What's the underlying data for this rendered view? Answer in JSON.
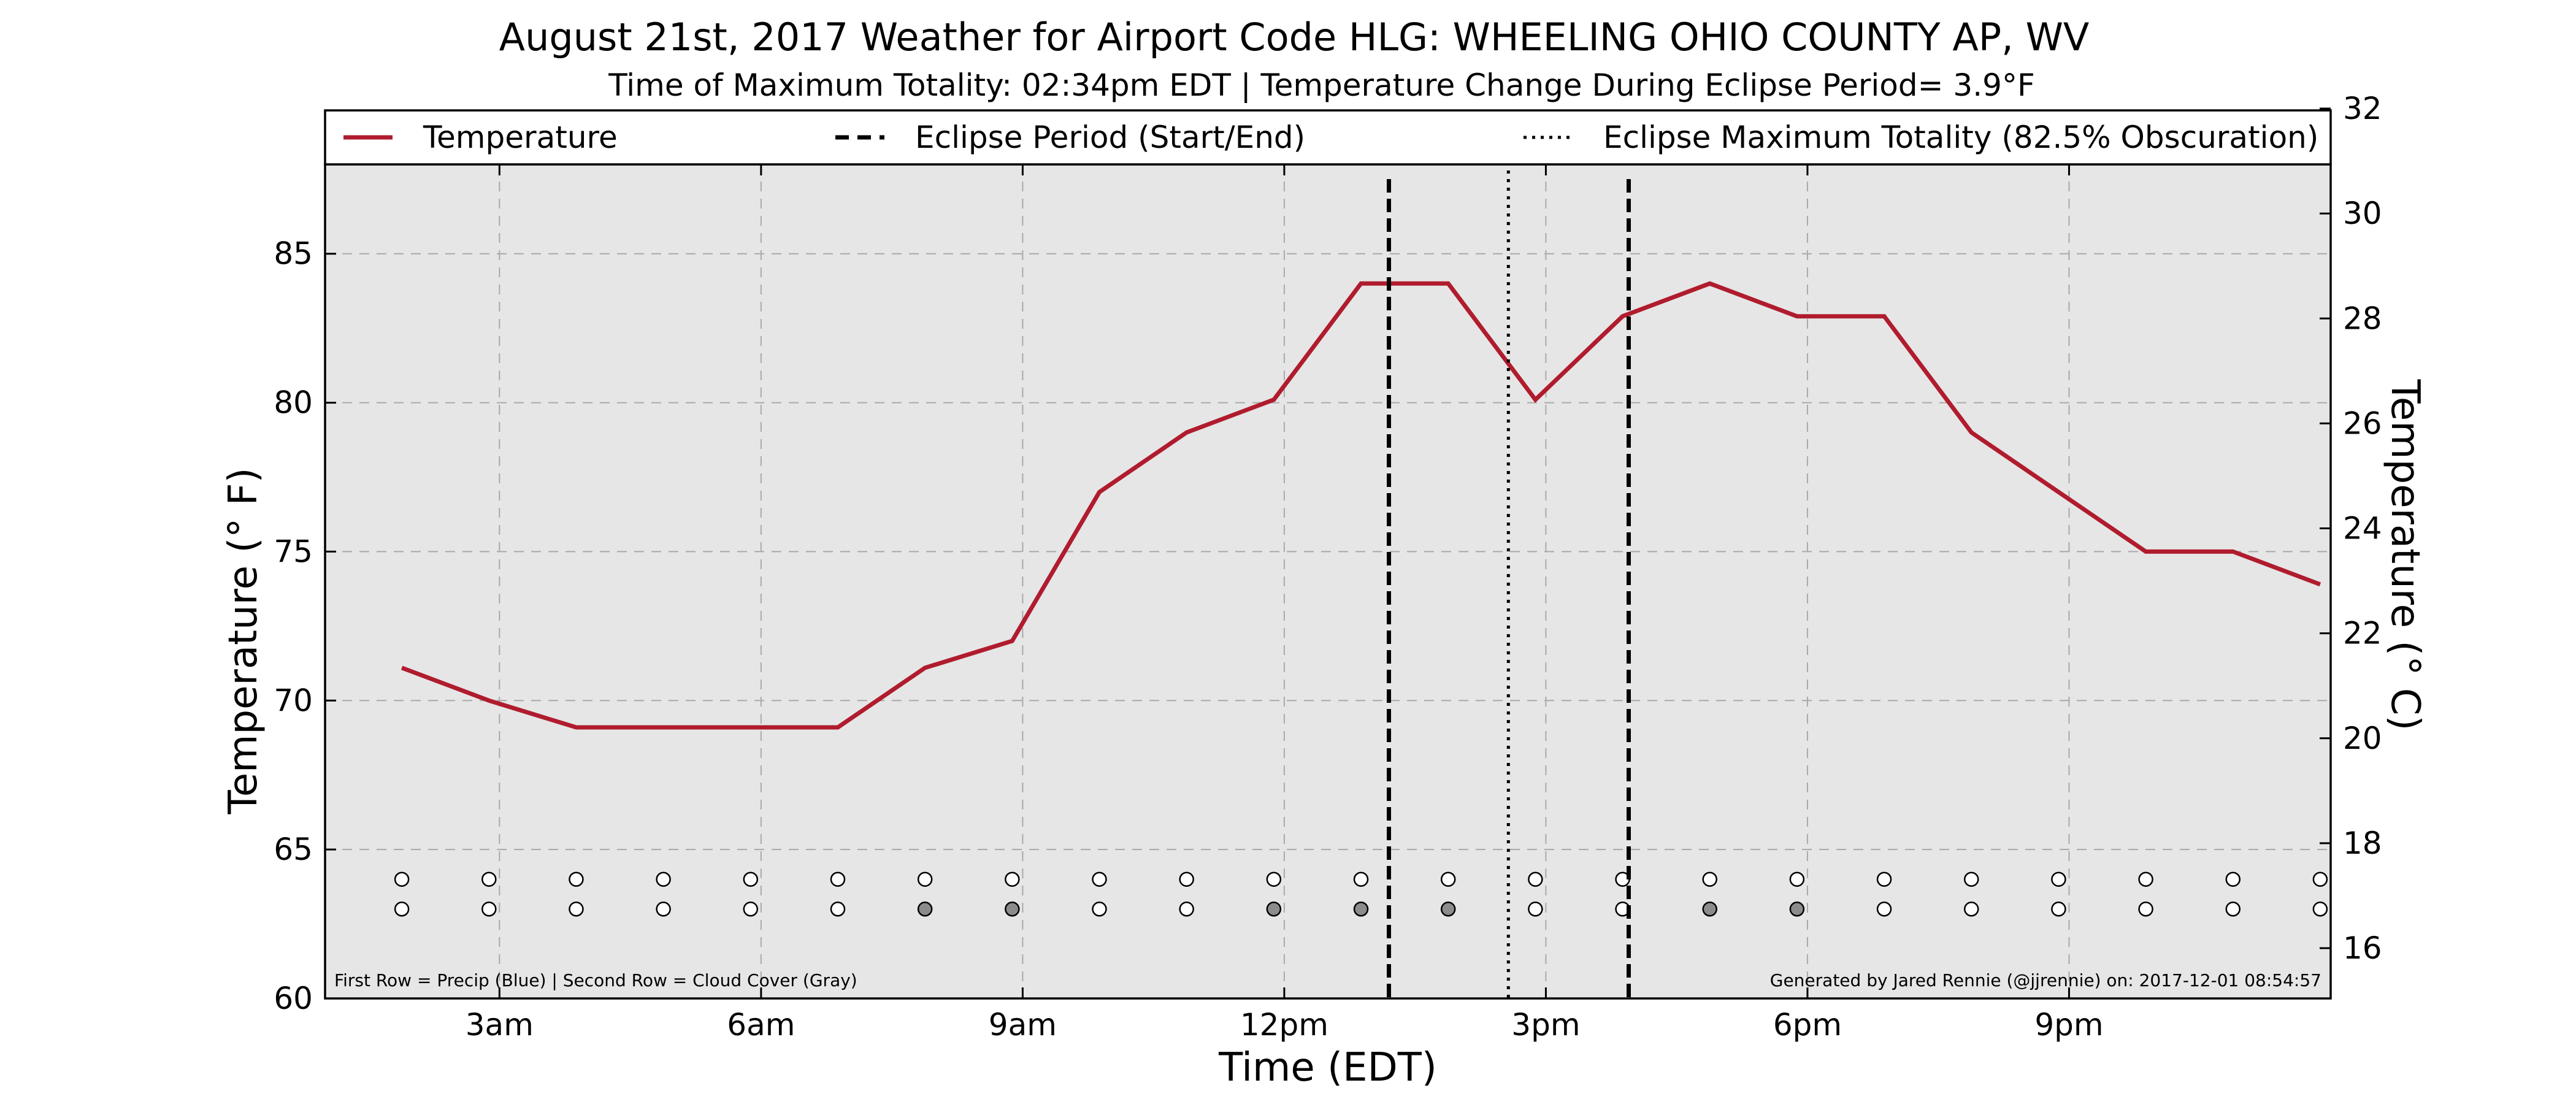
{
  "chart_data": {
    "type": "line",
    "title": "August 21st, 2017 Weather for Airport Code HLG: WHEELING OHIO COUNTY AP, WV",
    "subtitle": "Time of Maximum Totality: 02:34pm EDT | Temperature Change During Eclipse Period= 3.9°F",
    "xlabel": "Time (EDT)",
    "ylabel": "Temperature (° F)",
    "ylabel_right": "Temperature (° C)",
    "x_ticks": [
      {
        "label": "3am",
        "hour": 3
      },
      {
        "label": "6am",
        "hour": 6
      },
      {
        "label": "9am",
        "hour": 9
      },
      {
        "label": "12pm",
        "hour": 12
      },
      {
        "label": "3pm",
        "hour": 15
      },
      {
        "label": "6pm",
        "hour": 18
      },
      {
        "label": "9pm",
        "hour": 21
      }
    ],
    "xlim_hours": [
      1.0,
      24.0
    ],
    "ylim": [
      60,
      88
    ],
    "y_ticks": [
      60,
      65,
      70,
      75,
      80,
      85
    ],
    "y_right_ticks": [
      16,
      18,
      20,
      22,
      24,
      26,
      28,
      30,
      32
    ],
    "grid": true,
    "legend_placement": "top",
    "series": [
      {
        "name": "Temperature",
        "color": "#b01c2e",
        "x_hours": [
          1.88,
          2.88,
          3.88,
          4.88,
          5.88,
          6.88,
          7.88,
          8.88,
          9.88,
          10.88,
          11.88,
          12.88,
          13.88,
          14.88,
          15.88,
          16.88,
          17.88,
          18.88,
          19.88,
          20.88,
          21.88,
          22.88,
          23.88
        ],
        "values": [
          71.1,
          70.0,
          69.1,
          69.1,
          69.1,
          69.1,
          71.1,
          72.0,
          77.0,
          79.0,
          80.1,
          84.0,
          84.0,
          80.1,
          82.9,
          84.0,
          82.9,
          82.9,
          79.0,
          77.0,
          75.0,
          75.0,
          73.9
        ]
      }
    ],
    "eclipse": {
      "legend_label": "Eclipse Period (Start/End)",
      "start_hour": 13.2,
      "end_hour": 15.95,
      "max_label": "Eclipse Maximum Totality (82.5% Obscuration)",
      "max_hour": 14.57
    },
    "indicator_rows": {
      "y_values": [
        64.0,
        63.0
      ],
      "precip_filled": [
        false,
        false,
        false,
        false,
        false,
        false,
        false,
        false,
        false,
        false,
        false,
        false,
        false,
        false,
        false,
        false,
        false,
        false,
        false,
        false,
        false,
        false,
        false
      ],
      "cloud_filled": [
        false,
        false,
        false,
        false,
        false,
        false,
        true,
        true,
        false,
        false,
        true,
        true,
        true,
        false,
        false,
        true,
        true,
        false,
        false,
        false,
        false,
        false,
        false
      ],
      "filled_color": "#8c8c8c",
      "hollow_color": "#ffffff"
    },
    "footnote_left": "First Row = Precip (Blue) | Second Row = Cloud Cover (Gray)",
    "footnote_right": "Generated by Jared Rennie (@jjrennie) on: 2017-12-01 08:54:57",
    "colors": {
      "plot_background": "#e6e6e6",
      "grid": "#a9a9a9",
      "eclipse_lines": "#000000"
    }
  }
}
